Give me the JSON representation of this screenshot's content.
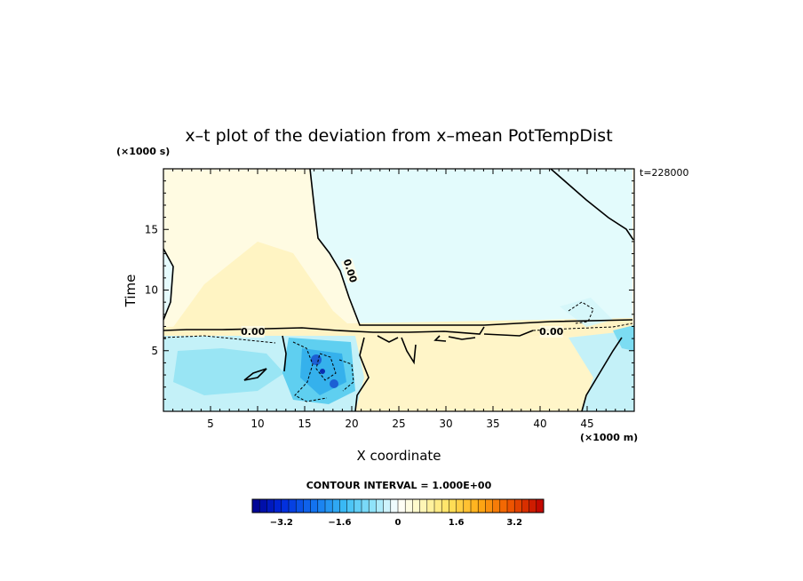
{
  "chart_data": {
    "type": "heatmap",
    "title": "x–t plot of the deviation from x–mean PotTempDist",
    "xlabel": "X coordinate",
    "ylabel": "Time",
    "x_unit": "(×1000 m)",
    "y_unit": "(×1000 s)",
    "time_label": "t=228000",
    "contour_interval": "CONTOUR INTERVAL = 1.000E+00",
    "xlim": [
      0,
      50
    ],
    "ylim": [
      0,
      20
    ],
    "x_ticks": [
      5,
      10,
      15,
      20,
      25,
      30,
      35,
      40,
      45
    ],
    "y_ticks": [
      5,
      10,
      15
    ],
    "contour_labels": [
      {
        "text": "0.00",
        "x": 19.5,
        "y": 11.5
      },
      {
        "text": "0.00",
        "x": 9.5,
        "y": 6.3
      },
      {
        "text": "0.00",
        "x": 41.2,
        "y": 6.3
      }
    ],
    "colorbar": {
      "min": -4,
      "max": 4,
      "step": 0.2,
      "tick_values": [
        -3.2,
        -1.6,
        0,
        1.6,
        3.2
      ],
      "tick_labels": [
        "−3.2",
        "−1.6",
        "0",
        "1.6",
        "3.2"
      ]
    }
  }
}
